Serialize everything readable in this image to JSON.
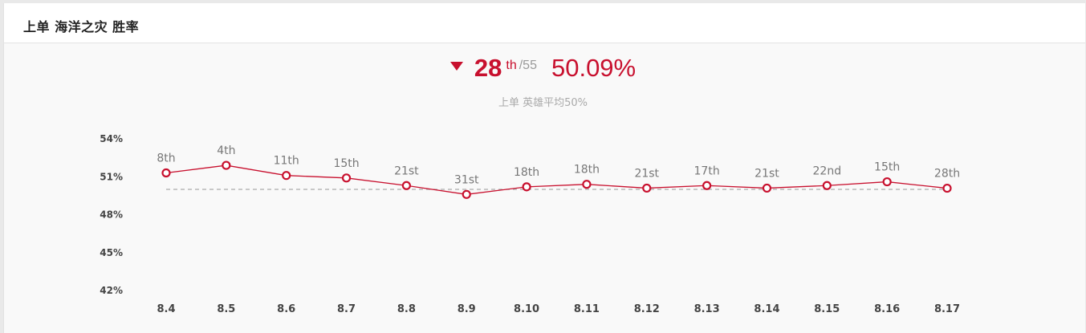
{
  "header": {
    "title": "上单 海洋之灾 胜率"
  },
  "summary": {
    "trend": "down",
    "trend_icon": "triangle-down-icon",
    "rank": "28",
    "rank_suffix": "th",
    "rank_total": "/55",
    "win_rate": "50.09%",
    "subtitle": "上单 英雄平均50%"
  },
  "colors": {
    "accent": "#c8102e",
    "average_line": "#aaaaaa"
  },
  "chart_data": {
    "type": "line",
    "title": "",
    "xlabel": "",
    "ylabel": "",
    "x": [
      "8.4",
      "8.5",
      "8.6",
      "8.7",
      "8.8",
      "8.9",
      "8.10",
      "8.11",
      "8.12",
      "8.13",
      "8.14",
      "8.15",
      "8.16",
      "8.17"
    ],
    "y_ticks": [
      "54%",
      "51%",
      "48%",
      "45%",
      "42%"
    ],
    "ylim": [
      42,
      54
    ],
    "reference_line": 50,
    "grid": false,
    "series": [
      {
        "values": [
          51.3,
          51.9,
          51.1,
          50.9,
          50.3,
          49.6,
          50.2,
          50.4,
          50.1,
          50.3,
          50.1,
          50.3,
          50.6,
          50.09
        ],
        "labels": [
          "8th",
          "4th",
          "11th",
          "15th",
          "21st",
          "31st",
          "18th",
          "18th",
          "21st",
          "17th",
          "21st",
          "22nd",
          "15th",
          "28th"
        ]
      }
    ]
  }
}
